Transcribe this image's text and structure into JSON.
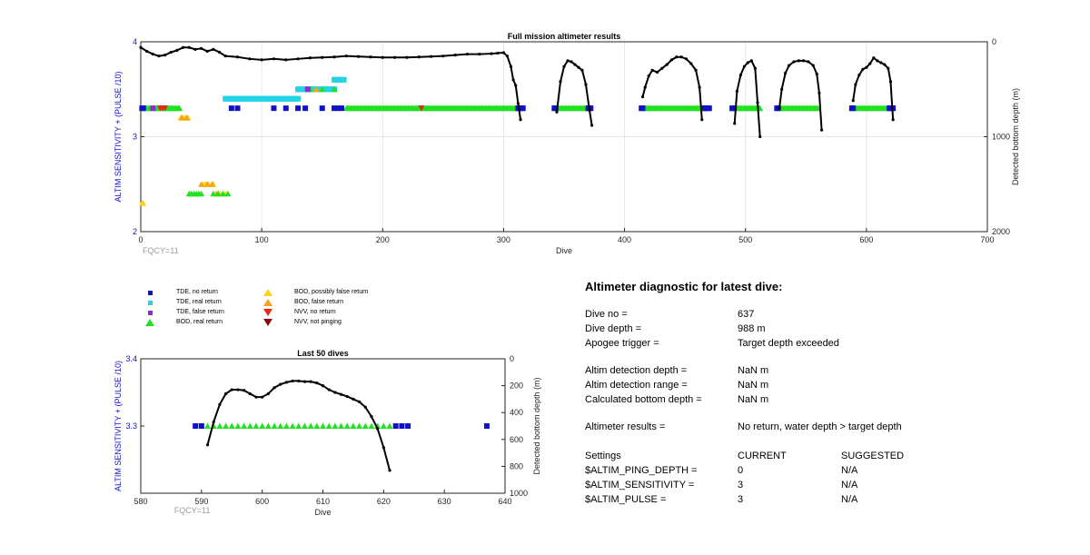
{
  "colors": {
    "tde_no_return": "#1111c8",
    "tde_real_return": "#22d3e6",
    "tde_false_return": "#8a2bd8",
    "bod_real_return": "#22e022",
    "bod_possibly_false": "#ffd21a",
    "bod_false_return": "#f5a31a",
    "nvv_no_return": "#e02a1a",
    "nvv_not_pinging": "#8a0c0c",
    "depth_line": "#000000",
    "axis_left": "#1111c8",
    "fqcy": "#9a9a9a"
  },
  "legend": [
    {
      "label": "TDE, no return",
      "color_key": "tde_no_return",
      "shape": "square"
    },
    {
      "label": "BOD, possibly false return",
      "color_key": "bod_possibly_false",
      "shape": "triangle-up"
    },
    {
      "label": "TDE, real return",
      "color_key": "tde_real_return",
      "shape": "square"
    },
    {
      "label": "BOD, false return",
      "color_key": "bod_false_return",
      "shape": "triangle-up"
    },
    {
      "label": "TDE, false return",
      "color_key": "tde_false_return",
      "shape": "square"
    },
    {
      "label": "NVV, no return",
      "color_key": "nvv_no_return",
      "shape": "triangle-down"
    },
    {
      "label": "BOD, real return",
      "color_key": "bod_real_return",
      "shape": "triangle-up"
    },
    {
      "label": "NVV, not pinging",
      "color_key": "nvv_not_pinging",
      "shape": "triangle-down"
    }
  ],
  "chart_data": [
    {
      "id": "full",
      "type": "scatter",
      "title": "Full mission altimeter results",
      "xlabel": "Dive",
      "ylabel": "ALTIM SENSITIVITY + (PULSE /10)",
      "y2label": "Detected bottom depth (m)",
      "xlim": [
        0,
        700
      ],
      "ylim": [
        2,
        4
      ],
      "y2lim": [
        0,
        2000
      ],
      "xticks": [
        0,
        100,
        200,
        300,
        400,
        500,
        600,
        700
      ],
      "yticks": [
        2,
        3,
        4
      ],
      "y2ticks": [
        0,
        1000,
        2000
      ],
      "grid": true,
      "annotation": "FQCY=11",
      "markers": [
        {
          "category": "bod_real_return",
          "shape": "triangle-up",
          "ranges": [
            [
              2,
              32
            ],
            [
              170,
              312
            ],
            [
              342,
              372
            ],
            [
              414,
              470
            ],
            [
              489,
              512
            ],
            [
              526,
              560
            ],
            [
              588,
              622
            ]
          ],
          "y": 3.3
        },
        {
          "category": "tde_no_return",
          "shape": "square",
          "points": [
            1,
            2,
            312,
            313,
            314,
            315,
            316,
            342,
            343,
            370,
            371,
            372,
            414,
            415,
            465,
            466,
            467,
            468,
            469,
            470,
            489,
            490,
            526,
            527,
            588,
            589,
            619,
            620,
            621,
            622,
            75,
            80,
            110,
            120,
            130,
            136,
            150,
            160,
            163,
            166
          ],
          "y": 3.3
        },
        {
          "category": "tde_real_return",
          "shape": "square",
          "ranges": [
            [
              70,
              130
            ],
            [
              130,
              160
            ],
            [
              160,
              168
            ]
          ],
          "y": [
            3.4,
            3.5,
            3.6
          ]
        },
        {
          "category": "bod_possibly_false",
          "shape": "triangle-up",
          "points": [
            1,
            2,
            33,
            35,
            37,
            39,
            52,
            54,
            56,
            60,
            62,
            66,
            70
          ],
          "y": [
            2.3,
            2.3,
            3.2,
            3.2,
            3.2,
            3.2,
            2.5,
            2.5,
            2.5,
            2.5,
            2.4,
            2.4,
            2.4
          ]
        },
        {
          "category": "bod_false_return",
          "shape": "triangle-up",
          "points": [
            34,
            38,
            50,
            55,
            59,
            63,
            140,
            145,
            150
          ],
          "y": [
            3.2,
            3.2,
            2.5,
            2.5,
            2.5,
            2.4,
            3.5,
            3.5,
            3.5
          ]
        },
        {
          "category": "bod_real_return",
          "shape": "triangle-up",
          "points": [
            40,
            42,
            44,
            46,
            48,
            50,
            60,
            64,
            68,
            72,
            140,
            150,
            160
          ],
          "y": [
            2.4,
            2.4,
            2.4,
            2.4,
            2.4,
            2.4,
            2.4,
            2.4,
            2.4,
            2.4,
            3.5,
            3.5,
            3.5
          ]
        },
        {
          "category": "nvv_no_return",
          "shape": "triangle-down",
          "points": [
            16,
            18,
            20,
            232
          ],
          "y": 3.3
        },
        {
          "category": "tde_false_return",
          "shape": "square",
          "points": [
            10,
            138
          ],
          "y": [
            3.3,
            3.5
          ]
        }
      ],
      "depth_series": {
        "name": "Detected bottom depth",
        "segments": [
          {
            "x": [
              0,
              5,
              10,
              15,
              20,
              25,
              30,
              35,
              40,
              45,
              50,
              55,
              60,
              65,
              70,
              80,
              90,
              100,
              110,
              120,
              130,
              140,
              150,
              160,
              170,
              180,
              190,
              200,
              210,
              220,
              230,
              240,
              250,
              260,
              270,
              280,
              290,
              295,
              300,
              303,
              306,
              308,
              310,
              312,
              314
            ],
            "y": [
              60,
              100,
              130,
              150,
              140,
              110,
              90,
              60,
              60,
              80,
              70,
              100,
              80,
              110,
              150,
              160,
              180,
              190,
              180,
              190,
              180,
              170,
              165,
              160,
              150,
              155,
              160,
              165,
              165,
              165,
              160,
              155,
              150,
              140,
              130,
              130,
              125,
              120,
              115,
              150,
              260,
              400,
              460,
              650,
              820
            ]
          },
          {
            "x": [
              344,
              347,
              350,
              353,
              356,
              359,
              362,
              365,
              368,
              371,
              373
            ],
            "y": [
              740,
              420,
              260,
              200,
              210,
              240,
              270,
              300,
              450,
              720,
              880
            ]
          },
          {
            "x": [
              415,
              417,
              420,
              423,
              427,
              431,
              435,
              439,
              443,
              447,
              451,
              455,
              459,
              462,
              464
            ],
            "y": [
              580,
              480,
              360,
              300,
              320,
              280,
              240,
              190,
              160,
              160,
              180,
              230,
              300,
              480,
              820
            ]
          },
          {
            "x": [
              491,
              493,
              496,
              499,
              502,
              505,
              508,
              510,
              512
            ],
            "y": [
              860,
              520,
              350,
              260,
              220,
              200,
              280,
              640,
              1000
            ]
          },
          {
            "x": [
              528,
              530,
              533,
              536,
              540,
              544,
              548,
              552,
              556,
              559,
              561,
              563
            ],
            "y": [
              700,
              500,
              330,
              250,
              210,
              200,
              200,
              210,
              250,
              340,
              540,
              930
            ]
          },
          {
            "x": [
              589,
              591,
              594,
              597,
              600,
              603,
              606,
              609,
              612,
              615,
              618,
              620,
              622
            ],
            "y": [
              620,
              450,
              350,
              290,
              270,
              230,
              170,
              200,
              220,
              240,
              280,
              420,
              820
            ]
          }
        ]
      }
    },
    {
      "id": "last50",
      "type": "scatter",
      "title": "Last 50 dives",
      "xlabel": "Dive",
      "ylabel": "ALTIM SENSITIVITY + (PULSE /10)",
      "y2label": "Detected bottom depth (m)",
      "xlim": [
        580,
        640
      ],
      "ylim": [
        3.2,
        3.4
      ],
      "y2lim": [
        0,
        1000
      ],
      "xticks": [
        580,
        590,
        600,
        610,
        620,
        630,
        640
      ],
      "yticks": [
        3.3,
        3.4
      ],
      "y2ticks": [
        0,
        200,
        400,
        600,
        800,
        1000
      ],
      "grid": false,
      "annotation": "FQCY=11",
      "markers": [
        {
          "category": "tde_no_return",
          "shape": "square",
          "points": [
            589,
            590,
            622,
            623,
            624,
            637
          ],
          "y": 3.3
        },
        {
          "category": "bod_real_return",
          "shape": "triangle-up",
          "ranges": [
            [
              591,
              621
            ]
          ],
          "y": 3.3
        }
      ],
      "depth_series": {
        "name": "Detected bottom depth",
        "segments": [
          {
            "x": [
              591,
              592,
              593,
              594,
              595,
              596,
              597,
              598,
              599,
              600,
              601,
              602,
              603,
              604,
              605,
              606,
              607,
              608,
              609,
              610,
              611,
              612,
              613,
              614,
              615,
              616,
              617,
              618,
              619,
              620,
              621
            ],
            "y": [
              640,
              470,
              340,
              260,
              230,
              230,
              235,
              260,
              285,
              285,
              260,
              215,
              190,
              175,
              165,
              165,
              170,
              170,
              180,
              200,
              230,
              250,
              265,
              280,
              300,
              320,
              360,
              430,
              520,
              660,
              830
            ]
          }
        ]
      }
    }
  ],
  "diagnostic": {
    "title": "Altimeter diagnostic for latest dive:",
    "rows": [
      {
        "label": "Dive no =",
        "value": "637",
        "suggested": ""
      },
      {
        "label": "Dive depth =",
        "value": "988 m",
        "suggested": ""
      },
      {
        "label": "Apogee trigger =",
        "value": "Target depth exceeded",
        "suggested": ""
      },
      {
        "label": "Altim detection depth =",
        "value": "NaN m",
        "suggested": ""
      },
      {
        "label": "Altim detection range =",
        "value": "NaN m",
        "suggested": ""
      },
      {
        "label": "Calculated bottom depth =",
        "value": "NaN m",
        "suggested": ""
      },
      {
        "label": "Altimeter results =",
        "value": "No return, water depth > target depth",
        "suggested": ""
      },
      {
        "label": "Settings",
        "value": "CURRENT",
        "suggested": "SUGGESTED"
      },
      {
        "label": "$ALTIM_PING_DEPTH =",
        "value": "0",
        "suggested": "N/A"
      },
      {
        "label": "$ALTIM_SENSITIVITY =",
        "value": "3",
        "suggested": "N/A"
      },
      {
        "label": "$ALTIM_PULSE =",
        "value": "3",
        "suggested": "N/A"
      }
    ]
  }
}
